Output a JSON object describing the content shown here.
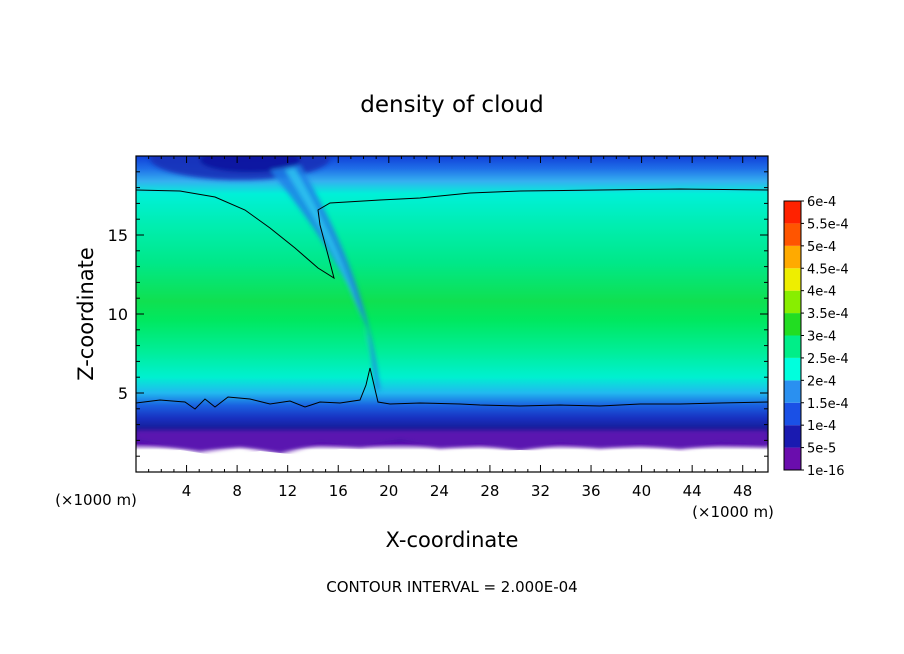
{
  "chart_data": {
    "type": "heatmap",
    "title": "density of cloud",
    "xlabel": "X-coordinate",
    "ylabel": "Z-coordinate",
    "x_unit_left": "(×1000 m)",
    "x_unit_right": "(×1000 m)",
    "xlim": [
      0,
      50
    ],
    "ylim": [
      0,
      20
    ],
    "x_ticks": [
      4,
      8,
      12,
      16,
      20,
      24,
      28,
      32,
      36,
      40,
      44,
      48
    ],
    "y_ticks": [
      5,
      10,
      15
    ],
    "footer": "CONTOUR INTERVAL = 2.000E-04",
    "contour_interval": 0.0002,
    "colorbar": {
      "levels": [
        {
          "label": "1e-16",
          "color": "#6a0dad"
        },
        {
          "label": "5e-5",
          "color": "#1a1ab0"
        },
        {
          "label": "1e-4",
          "color": "#1a50e6"
        },
        {
          "label": "1.5e-4",
          "color": "#2a90f0"
        },
        {
          "label": "2e-4",
          "color": "#00ffdd"
        },
        {
          "label": "2.5e-4",
          "color": "#00ee88"
        },
        {
          "label": "3e-4",
          "color": "#22dd22"
        },
        {
          "label": "3.5e-4",
          "color": "#88ee00"
        },
        {
          "label": "4e-4",
          "color": "#eeee00"
        },
        {
          "label": "4.5e-4",
          "color": "#ffaa00"
        },
        {
          "label": "5e-4",
          "color": "#ff5500"
        },
        {
          "label": "5.5e-4",
          "color": "#ff2200"
        },
        {
          "label": "6e-4",
          "color": "#ff8080"
        }
      ]
    }
  }
}
